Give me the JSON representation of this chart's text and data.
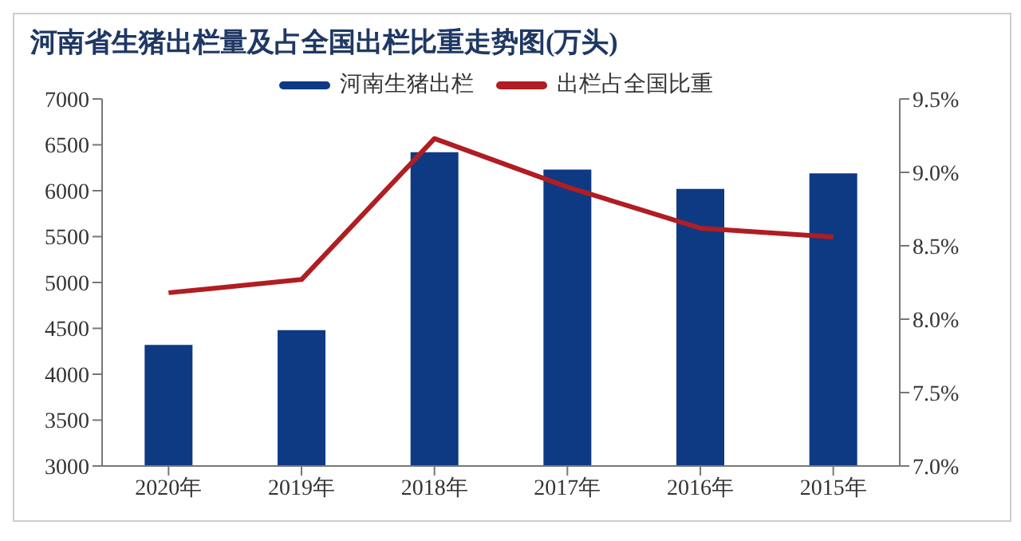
{
  "chart_data": {
    "type": "bar",
    "title": "河南省生猪出栏量及占全国出栏比重走势图(万头)",
    "categories": [
      "2020年",
      "2019年",
      "2018年",
      "2017年",
      "2016年",
      "2015年"
    ],
    "series": [
      {
        "name": "河南生猪出栏",
        "color": "#0e3a84",
        "values": [
          4320,
          4480,
          6420,
          6230,
          6020,
          6190
        ]
      },
      {
        "name": "出栏占全国比重",
        "type": "line",
        "axis": "y2",
        "color": "#b01d22",
        "values": [
          8.18,
          8.27,
          9.23,
          8.9,
          8.62,
          8.56
        ]
      }
    ],
    "ylim": [
      3000,
      7000
    ],
    "yticks": [
      3000,
      3500,
      4000,
      4500,
      5000,
      5500,
      6000,
      6500,
      7000
    ],
    "y2lim": [
      7,
      9.5
    ],
    "y2ticks": [
      {
        "value": 7,
        "label": "7.0%"
      },
      {
        "value": 7.5,
        "label": "7.5%"
      },
      {
        "value": 8,
        "label": "8.0%"
      },
      {
        "value": 8.5,
        "label": "8.5%"
      },
      {
        "value": 9,
        "label": "9.0%"
      },
      {
        "value": 9.5,
        "label": "9.5%"
      }
    ],
    "grid": false,
    "legend": "top",
    "marker": "none"
  }
}
